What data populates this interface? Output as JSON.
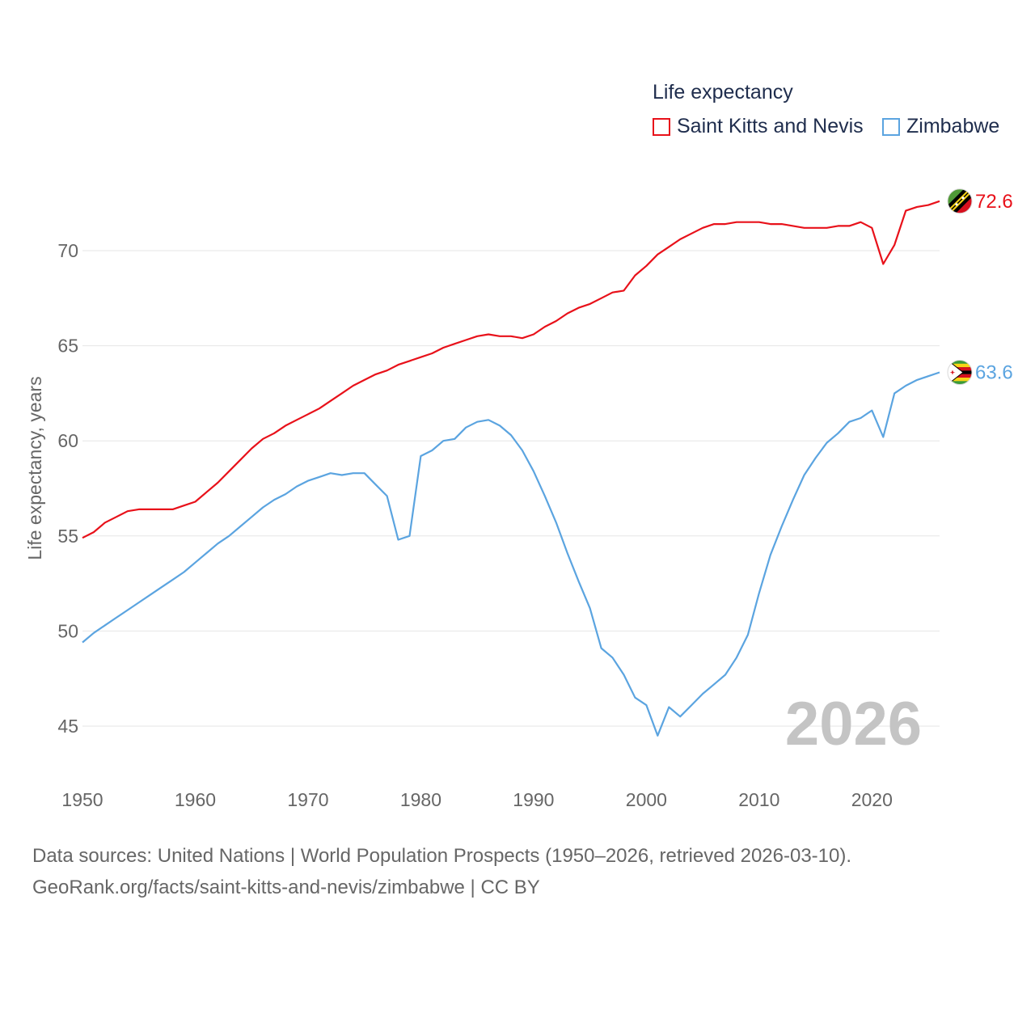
{
  "legend": {
    "title": "Life expectancy",
    "series": [
      {
        "name": "Saint Kitts and Nevis",
        "color": "#e8111a"
      },
      {
        "name": "Zimbabwe",
        "color": "#5ba4e0"
      }
    ]
  },
  "year_label": "2026",
  "footer": {
    "line1": "Data sources: United Nations | World Population Prospects (1950–2026, retrieved 2026-03-10).",
    "line2": "GeoRank.org/facts/saint-kitts-and-nevis/zimbabwe | CC BY"
  },
  "chart_data": {
    "type": "line",
    "title": "Life expectancy",
    "xlabel": "",
    "ylabel": "Life expectancy, years",
    "xlim": [
      1950,
      2026
    ],
    "ylim": [
      44,
      74
    ],
    "x_ticks": [
      1950,
      1960,
      1970,
      1980,
      1990,
      2000,
      2010,
      2020
    ],
    "y_ticks": [
      45,
      50,
      55,
      60,
      65,
      70
    ],
    "grid": true,
    "legend_position": "top-right",
    "series": [
      {
        "name": "Saint Kitts and Nevis",
        "color": "#e8111a",
        "end_label": "72.6",
        "flag": "saint-kitts-and-nevis-flag-icon",
        "x": [
          1950,
          1951,
          1952,
          1953,
          1954,
          1955,
          1956,
          1957,
          1958,
          1959,
          1960,
          1961,
          1962,
          1963,
          1964,
          1965,
          1966,
          1967,
          1968,
          1969,
          1970,
          1971,
          1972,
          1973,
          1974,
          1975,
          1976,
          1977,
          1978,
          1979,
          1980,
          1981,
          1982,
          1983,
          1984,
          1985,
          1986,
          1987,
          1988,
          1989,
          1990,
          1991,
          1992,
          1993,
          1994,
          1995,
          1996,
          1997,
          1998,
          1999,
          2000,
          2001,
          2002,
          2003,
          2004,
          2005,
          2006,
          2007,
          2008,
          2009,
          2010,
          2011,
          2012,
          2013,
          2014,
          2015,
          2016,
          2017,
          2018,
          2019,
          2020,
          2021,
          2022,
          2023,
          2024,
          2025,
          2026
        ],
        "y": [
          54.9,
          55.2,
          55.7,
          56.0,
          56.3,
          56.4,
          56.4,
          56.4,
          56.4,
          56.6,
          56.8,
          57.3,
          57.8,
          58.4,
          59.0,
          59.6,
          60.1,
          60.4,
          60.8,
          61.1,
          61.4,
          61.7,
          62.1,
          62.5,
          62.9,
          63.2,
          63.5,
          63.7,
          64.0,
          64.2,
          64.4,
          64.6,
          64.9,
          65.1,
          65.3,
          65.5,
          65.6,
          65.5,
          65.5,
          65.4,
          65.6,
          66.0,
          66.3,
          66.7,
          67.0,
          67.2,
          67.5,
          67.8,
          67.9,
          68.7,
          69.2,
          69.8,
          70.2,
          70.6,
          70.9,
          71.2,
          71.4,
          71.4,
          71.5,
          71.5,
          71.5,
          71.4,
          71.4,
          71.3,
          71.2,
          71.2,
          71.2,
          71.3,
          71.3,
          71.5,
          71.2,
          69.3,
          70.3,
          72.1,
          72.3,
          72.4,
          72.6
        ]
      },
      {
        "name": "Zimbabwe",
        "color": "#5ba4e0",
        "end_label": "63.6",
        "flag": "zimbabwe-flag-icon",
        "x": [
          1950,
          1951,
          1952,
          1953,
          1954,
          1955,
          1956,
          1957,
          1958,
          1959,
          1960,
          1961,
          1962,
          1963,
          1964,
          1965,
          1966,
          1967,
          1968,
          1969,
          1970,
          1971,
          1972,
          1973,
          1974,
          1975,
          1976,
          1977,
          1978,
          1979,
          1980,
          1981,
          1982,
          1983,
          1984,
          1985,
          1986,
          1987,
          1988,
          1989,
          1990,
          1991,
          1992,
          1993,
          1994,
          1995,
          1996,
          1997,
          1998,
          1999,
          2000,
          2001,
          2002,
          2003,
          2004,
          2005,
          2006,
          2007,
          2008,
          2009,
          2010,
          2011,
          2012,
          2013,
          2014,
          2015,
          2016,
          2017,
          2018,
          2019,
          2020,
          2021,
          2022,
          2023,
          2024,
          2025,
          2026
        ],
        "y": [
          49.4,
          49.9,
          50.3,
          50.7,
          51.1,
          51.5,
          51.9,
          52.3,
          52.7,
          53.1,
          53.6,
          54.1,
          54.6,
          55.0,
          55.5,
          56.0,
          56.5,
          56.9,
          57.2,
          57.6,
          57.9,
          58.1,
          58.3,
          58.2,
          58.3,
          58.3,
          57.7,
          57.1,
          54.8,
          55.0,
          59.2,
          59.5,
          60.0,
          60.1,
          60.7,
          61.0,
          61.1,
          60.8,
          60.3,
          59.5,
          58.4,
          57.1,
          55.7,
          54.1,
          52.6,
          51.2,
          49.1,
          48.6,
          47.7,
          46.5,
          46.1,
          44.5,
          46.0,
          45.5,
          46.1,
          46.7,
          47.2,
          47.7,
          48.6,
          49.8,
          52.0,
          54.0,
          55.5,
          56.9,
          58.2,
          59.1,
          59.9,
          60.4,
          61.0,
          61.2,
          61.6,
          60.2,
          62.5,
          62.9,
          63.2,
          63.4,
          63.6
        ]
      }
    ]
  }
}
